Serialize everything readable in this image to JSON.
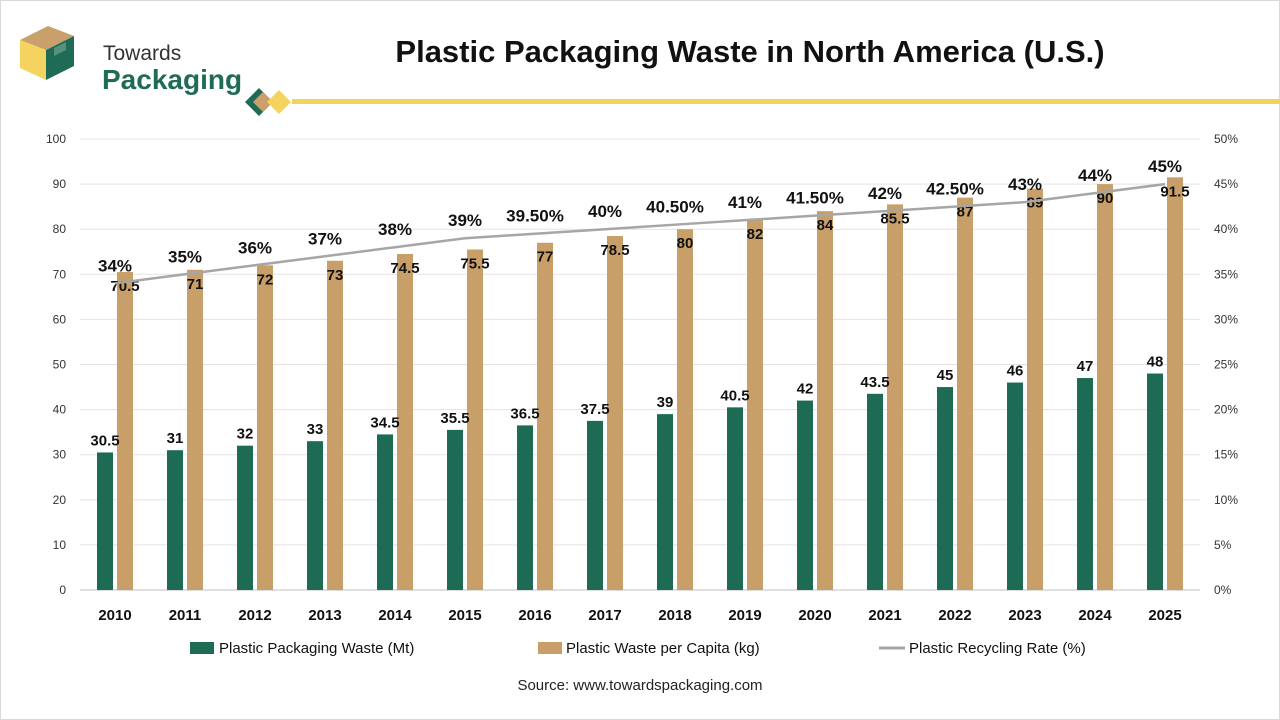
{
  "brand": {
    "line1": "Towards",
    "line2": "Packaging"
  },
  "colors": {
    "waste": "#1e6b55",
    "per_capita": "#c89e69",
    "recycling": "#a6a6a6",
    "accent_yellow": "#f2d35a"
  },
  "source": "Source: www.towardspackaging.com",
  "chart_data": {
    "type": "bar",
    "title": "Plastic Packaging Waste in North America (U.S.)",
    "categories": [
      "2010",
      "2011",
      "2012",
      "2013",
      "2014",
      "2015",
      "2016",
      "2017",
      "2018",
      "2019",
      "2020",
      "2021",
      "2022",
      "2023",
      "2024",
      "2025"
    ],
    "series": [
      {
        "name": "Plastic Packaging Waste (Mt)",
        "type": "bar",
        "axis": "left",
        "values": [
          30.5,
          31,
          32,
          33,
          34.5,
          35.5,
          36.5,
          37.5,
          39,
          40.5,
          42,
          43.5,
          45,
          46,
          47,
          48
        ],
        "labels": [
          "30.5",
          "31",
          "32",
          "33",
          "34.5",
          "35.5",
          "36.5",
          "37.5",
          "39",
          "40.5",
          "42",
          "43.5",
          "45",
          "46",
          "47",
          "48"
        ]
      },
      {
        "name": "Plastic Waste per Capita (kg)",
        "type": "bar",
        "axis": "left",
        "values": [
          70.5,
          71,
          72,
          73,
          74.5,
          75.5,
          77,
          78.5,
          80,
          82,
          84,
          85.5,
          87,
          89,
          90,
          91.5
        ],
        "labels": [
          "70.5",
          "71",
          "72",
          "73",
          "74.5",
          "75.5",
          "77",
          "78.5",
          "80",
          "82",
          "84",
          "85.5",
          "87",
          "89",
          "90",
          "91.5"
        ]
      },
      {
        "name": "Plastic Recycling Rate (%)",
        "type": "line",
        "axis": "right",
        "values": [
          34,
          35,
          36,
          37,
          38,
          39,
          39.5,
          40,
          40.5,
          41,
          41.5,
          42,
          42.5,
          43,
          44,
          45
        ],
        "labels": [
          "34%",
          "35%",
          "36%",
          "37%",
          "38%",
          "39%",
          "39.50%",
          "40%",
          "40.50%",
          "41%",
          "41.50%",
          "42%",
          "42.50%",
          "43%",
          "44%",
          "45%"
        ]
      }
    ],
    "y_left": {
      "min": 0,
      "max": 100,
      "step": 10,
      "ticks": [
        "0",
        "10",
        "20",
        "30",
        "40",
        "50",
        "60",
        "70",
        "80",
        "90",
        "100"
      ]
    },
    "y_right": {
      "min": 0,
      "max": 50,
      "step": 5,
      "ticks": [
        "0%",
        "5%",
        "10%",
        "15%",
        "20%",
        "25%",
        "30%",
        "35%",
        "40%",
        "45%",
        "50%"
      ]
    },
    "grid": true,
    "legend": "bottom"
  }
}
